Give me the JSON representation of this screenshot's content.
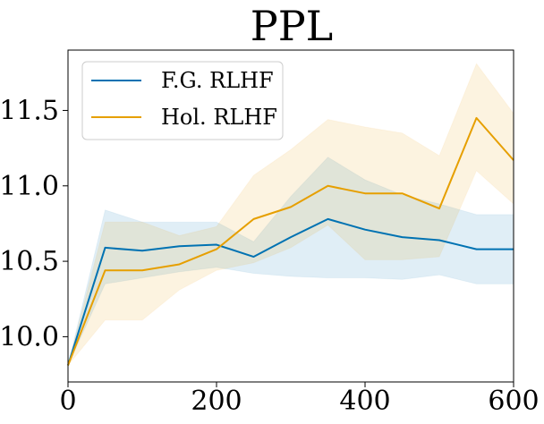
{
  "chart_data": {
    "type": "line",
    "title": "PPL",
    "xlabel": "",
    "ylabel": "",
    "xlim": [
      0,
      600
    ],
    "ylim": [
      9.7,
      11.9
    ],
    "xticks": [
      0,
      200,
      400,
      600
    ],
    "xtick_labels": [
      "0",
      "200",
      "400",
      "600"
    ],
    "yticks": [
      10.0,
      10.5,
      11.0,
      11.5
    ],
    "ytick_labels": [
      "10.0",
      "10.5",
      "11.0",
      "11.5"
    ],
    "grid": false,
    "legend_position": "top-left",
    "x": [
      0,
      50,
      100,
      150,
      200,
      250,
      300,
      350,
      400,
      450,
      500,
      550,
      600
    ],
    "series": [
      {
        "name": "F.G. RLHF",
        "color": "#0072b2",
        "values": [
          9.81,
          10.59,
          10.57,
          10.6,
          10.61,
          10.53,
          10.66,
          10.78,
          10.71,
          10.66,
          10.64,
          10.58,
          10.58
        ],
        "lower": [
          9.81,
          10.35,
          10.39,
          10.43,
          10.46,
          10.42,
          10.4,
          10.39,
          10.39,
          10.38,
          10.41,
          10.35,
          10.35
        ],
        "upper": [
          9.81,
          10.84,
          10.76,
          10.76,
          10.76,
          10.63,
          10.93,
          11.19,
          11.04,
          10.94,
          10.88,
          10.81,
          10.81
        ]
      },
      {
        "name": "Hol. RLHF",
        "color": "#e69f00",
        "values": [
          9.81,
          10.44,
          10.44,
          10.48,
          10.58,
          10.78,
          10.86,
          11.0,
          10.95,
          10.95,
          10.85,
          11.45,
          11.17
        ],
        "lower": [
          9.81,
          10.11,
          10.11,
          10.31,
          10.44,
          10.49,
          10.59,
          10.74,
          10.51,
          10.51,
          10.53,
          11.1,
          10.88
        ],
        "upper": [
          9.81,
          10.76,
          10.76,
          10.67,
          10.73,
          11.07,
          11.24,
          11.44,
          11.39,
          11.35,
          11.2,
          11.81,
          11.48
        ]
      }
    ]
  }
}
